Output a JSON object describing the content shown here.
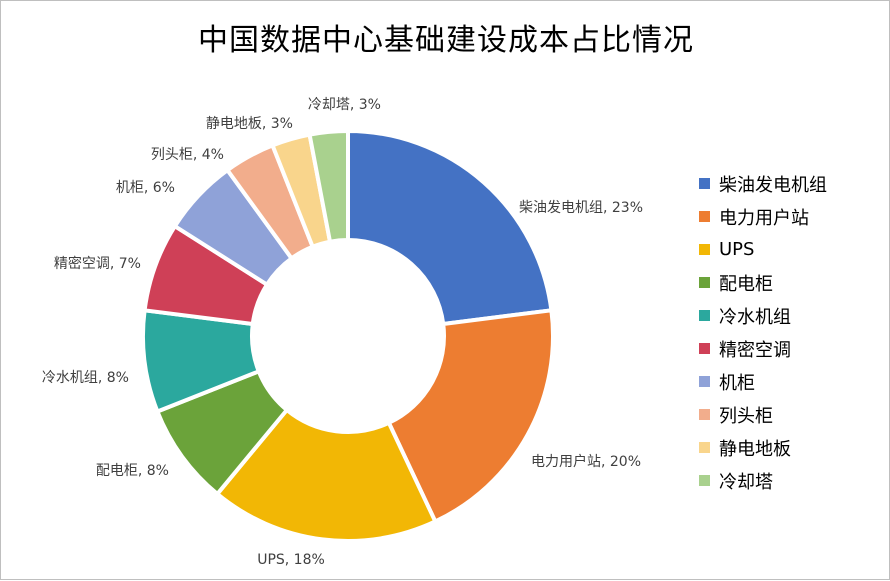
{
  "chart_data": {
    "type": "pie",
    "title": "中国数据中心基础建设成本占比情况",
    "legend_position": "right",
    "unit": "%",
    "categories": [
      "柴油发电机组",
      "电力用户站",
      "UPS",
      "配电柜",
      "冷水机组",
      "精密空调",
      "机柜",
      "列头柜",
      "静电地板",
      "冷却塔"
    ],
    "values": [
      23,
      20,
      18,
      8,
      8,
      7,
      6,
      4,
      3,
      3
    ],
    "colors": [
      "#4472C4",
      "#ED7D31",
      "#F2B705",
      "#6BA33A",
      "#2BA89E",
      "#CF4057",
      "#8FA2D8",
      "#F2AD8C",
      "#F9D58C",
      "#A9D18E"
    ]
  }
}
